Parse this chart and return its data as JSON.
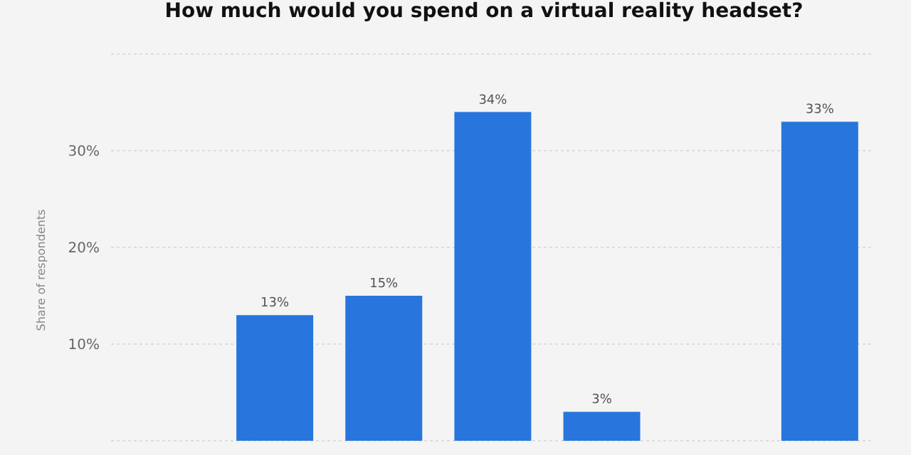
{
  "chart_data": {
    "type": "bar",
    "title": "How much would you spend on a virtual reality headset?",
    "ylabel": "Share of respondents",
    "categories": [
      null,
      null,
      null,
      null,
      null,
      null,
      null
    ],
    "values": [
      null,
      13,
      15,
      34,
      3,
      null,
      33
    ],
    "value_labels": [
      null,
      "13%",
      "15%",
      "34%",
      "3%",
      null,
      "33%"
    ],
    "color": "#2876dd",
    "ylim": [
      0,
      40
    ],
    "yticks": [
      {
        "value": 10,
        "label": "10%"
      },
      {
        "value": 20,
        "label": "20%"
      },
      {
        "value": 30,
        "label": "30%"
      },
      {
        "value": 40,
        "label": null
      }
    ],
    "grid": "y",
    "tick_labels": "y"
  }
}
